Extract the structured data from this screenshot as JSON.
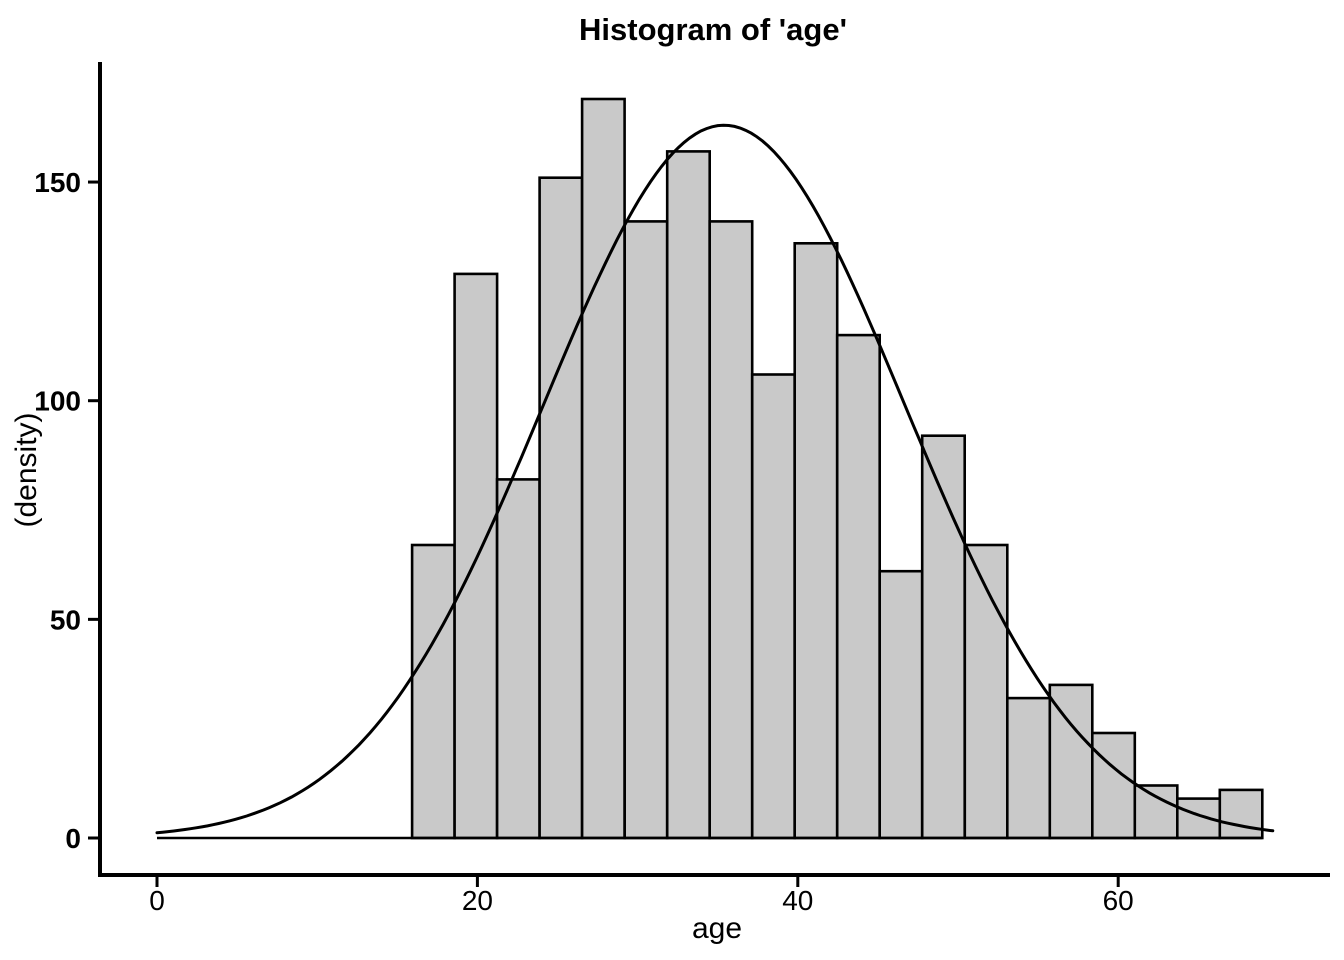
{
  "chart_data": {
    "type": "histogram",
    "title": "Histogram of 'age'",
    "xlabel": "age",
    "ylabel": "(density)",
    "x_axis": {
      "ticks": [
        0,
        20,
        40,
        60
      ],
      "range": [
        -3.6,
        73.2
      ]
    },
    "y_axis": {
      "ticks": [
        0,
        50,
        100,
        150
      ],
      "range": [
        -8.5,
        177
      ]
    },
    "bins": {
      "start": 0,
      "end": 69,
      "n_bins": 26,
      "bin_width": 2.6538
    },
    "counts": [
      0,
      0,
      0,
      0,
      0,
      0,
      67,
      129,
      82,
      151,
      169,
      141,
      157,
      141,
      106,
      136,
      115,
      61,
      92,
      67,
      32,
      35,
      24,
      12,
      9,
      11
    ],
    "curve": {
      "shape": "normal",
      "amplitude": 163,
      "mean": 35.4,
      "sd": 11.3,
      "x_start": 0,
      "x_end": 69.7
    },
    "colors": {
      "bar_fill": "#c9c9c9",
      "bar_edge": "#000000",
      "curve": "#000000",
      "axis": "#000000",
      "background": "#ffffff",
      "text": "#000000"
    }
  }
}
